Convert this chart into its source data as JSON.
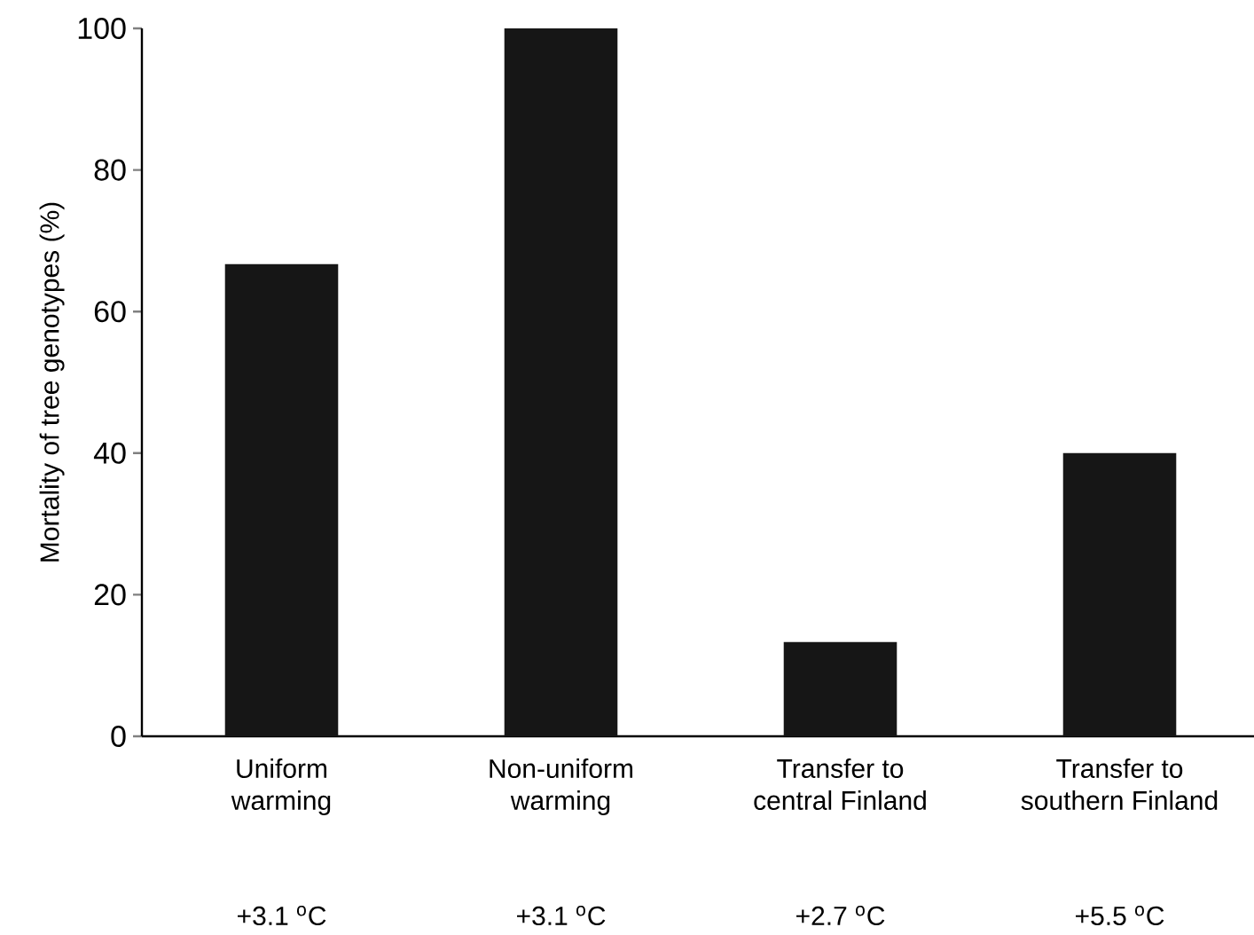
{
  "chart_data": {
    "type": "bar",
    "ylabel": "Mortality of tree genotypes (%)",
    "categories": [
      "Uniform warming",
      "Non-uniform warming",
      "Transfer to central Finland",
      "Transfer to southern Finland"
    ],
    "values": [
      66.7,
      100,
      13.3,
      40
    ],
    "color": "#161616",
    "ylim": [
      0,
      100
    ],
    "yticks": [
      0,
      20,
      40,
      60,
      80,
      100
    ],
    "annotations": [
      "+3.1 $^{o}$C",
      "+3.1 $^{o}$C",
      "+2.7 $^{o}$C",
      "+5.5 $^{o}$C"
    ]
  }
}
